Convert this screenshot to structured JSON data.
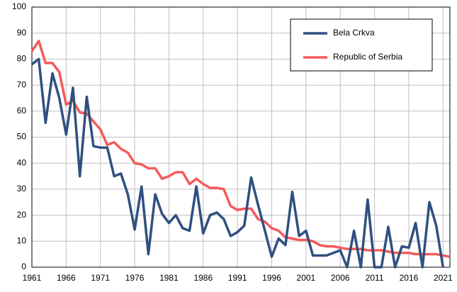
{
  "chart_data": {
    "type": "line",
    "x": [
      1961,
      1962,
      1963,
      1964,
      1965,
      1966,
      1967,
      1968,
      1969,
      1970,
      1971,
      1972,
      1973,
      1974,
      1975,
      1976,
      1977,
      1978,
      1979,
      1980,
      1981,
      1982,
      1983,
      1984,
      1985,
      1986,
      1987,
      1988,
      1989,
      1990,
      1991,
      1992,
      1993,
      1994,
      1995,
      1996,
      1997,
      1998,
      1999,
      2000,
      2001,
      2002,
      2003,
      2004,
      2005,
      2006,
      2007,
      2008,
      2009,
      2010,
      2011,
      2012,
      2013,
      2014,
      2015,
      2016,
      2017,
      2018,
      2019,
      2020,
      2021,
      2022
    ],
    "series": [
      {
        "name": "Bela Crkva",
        "color": "#2f5080",
        "values": [
          78,
          80,
          55.5,
          74.5,
          65,
          51,
          69,
          35,
          65.5,
          46.5,
          46,
          46,
          35,
          36,
          28,
          14.5,
          31,
          5,
          28,
          20.5,
          17,
          20,
          15,
          14,
          31,
          13,
          20,
          21,
          18.5,
          12,
          13.5,
          16,
          34.5,
          24,
          14,
          4,
          11,
          8.5,
          29,
          12,
          14,
          4.5,
          4.5,
          4.5,
          5.5,
          6.5,
          0,
          14,
          0,
          26,
          0,
          0,
          15.5,
          0,
          8,
          7.5,
          17,
          0,
          25,
          16,
          0,
          null
        ]
      },
      {
        "name": "Republic of Serbia",
        "color": "#f45b5b",
        "values": [
          83,
          87,
          78.5,
          78.5,
          75,
          62.5,
          64,
          59.5,
          59,
          56,
          53,
          47,
          48,
          45.5,
          44,
          40,
          39.5,
          38,
          38,
          34,
          35,
          36.5,
          36.5,
          32,
          34,
          32,
          30.5,
          30.5,
          30,
          23.5,
          22,
          22.5,
          22.5,
          18.5,
          17.5,
          15,
          14,
          11.5,
          11,
          10.5,
          10.5,
          10,
          8.5,
          8,
          8,
          7.5,
          7,
          7,
          7,
          6.5,
          6.5,
          6.5,
          6,
          5.5,
          5.5,
          5.5,
          5,
          5,
          5,
          5,
          4.5,
          4
        ]
      }
    ],
    "xlim": [
      1961,
      2022
    ],
    "xticks": [
      1961,
      1966,
      1971,
      1976,
      1981,
      1986,
      1991,
      1996,
      2001,
      2006,
      2011,
      2016,
      2021
    ],
    "ylim": [
      0,
      100
    ],
    "yticks": [
      0,
      10,
      20,
      30,
      40,
      50,
      60,
      70,
      80,
      90,
      100
    ],
    "grid": true
  }
}
